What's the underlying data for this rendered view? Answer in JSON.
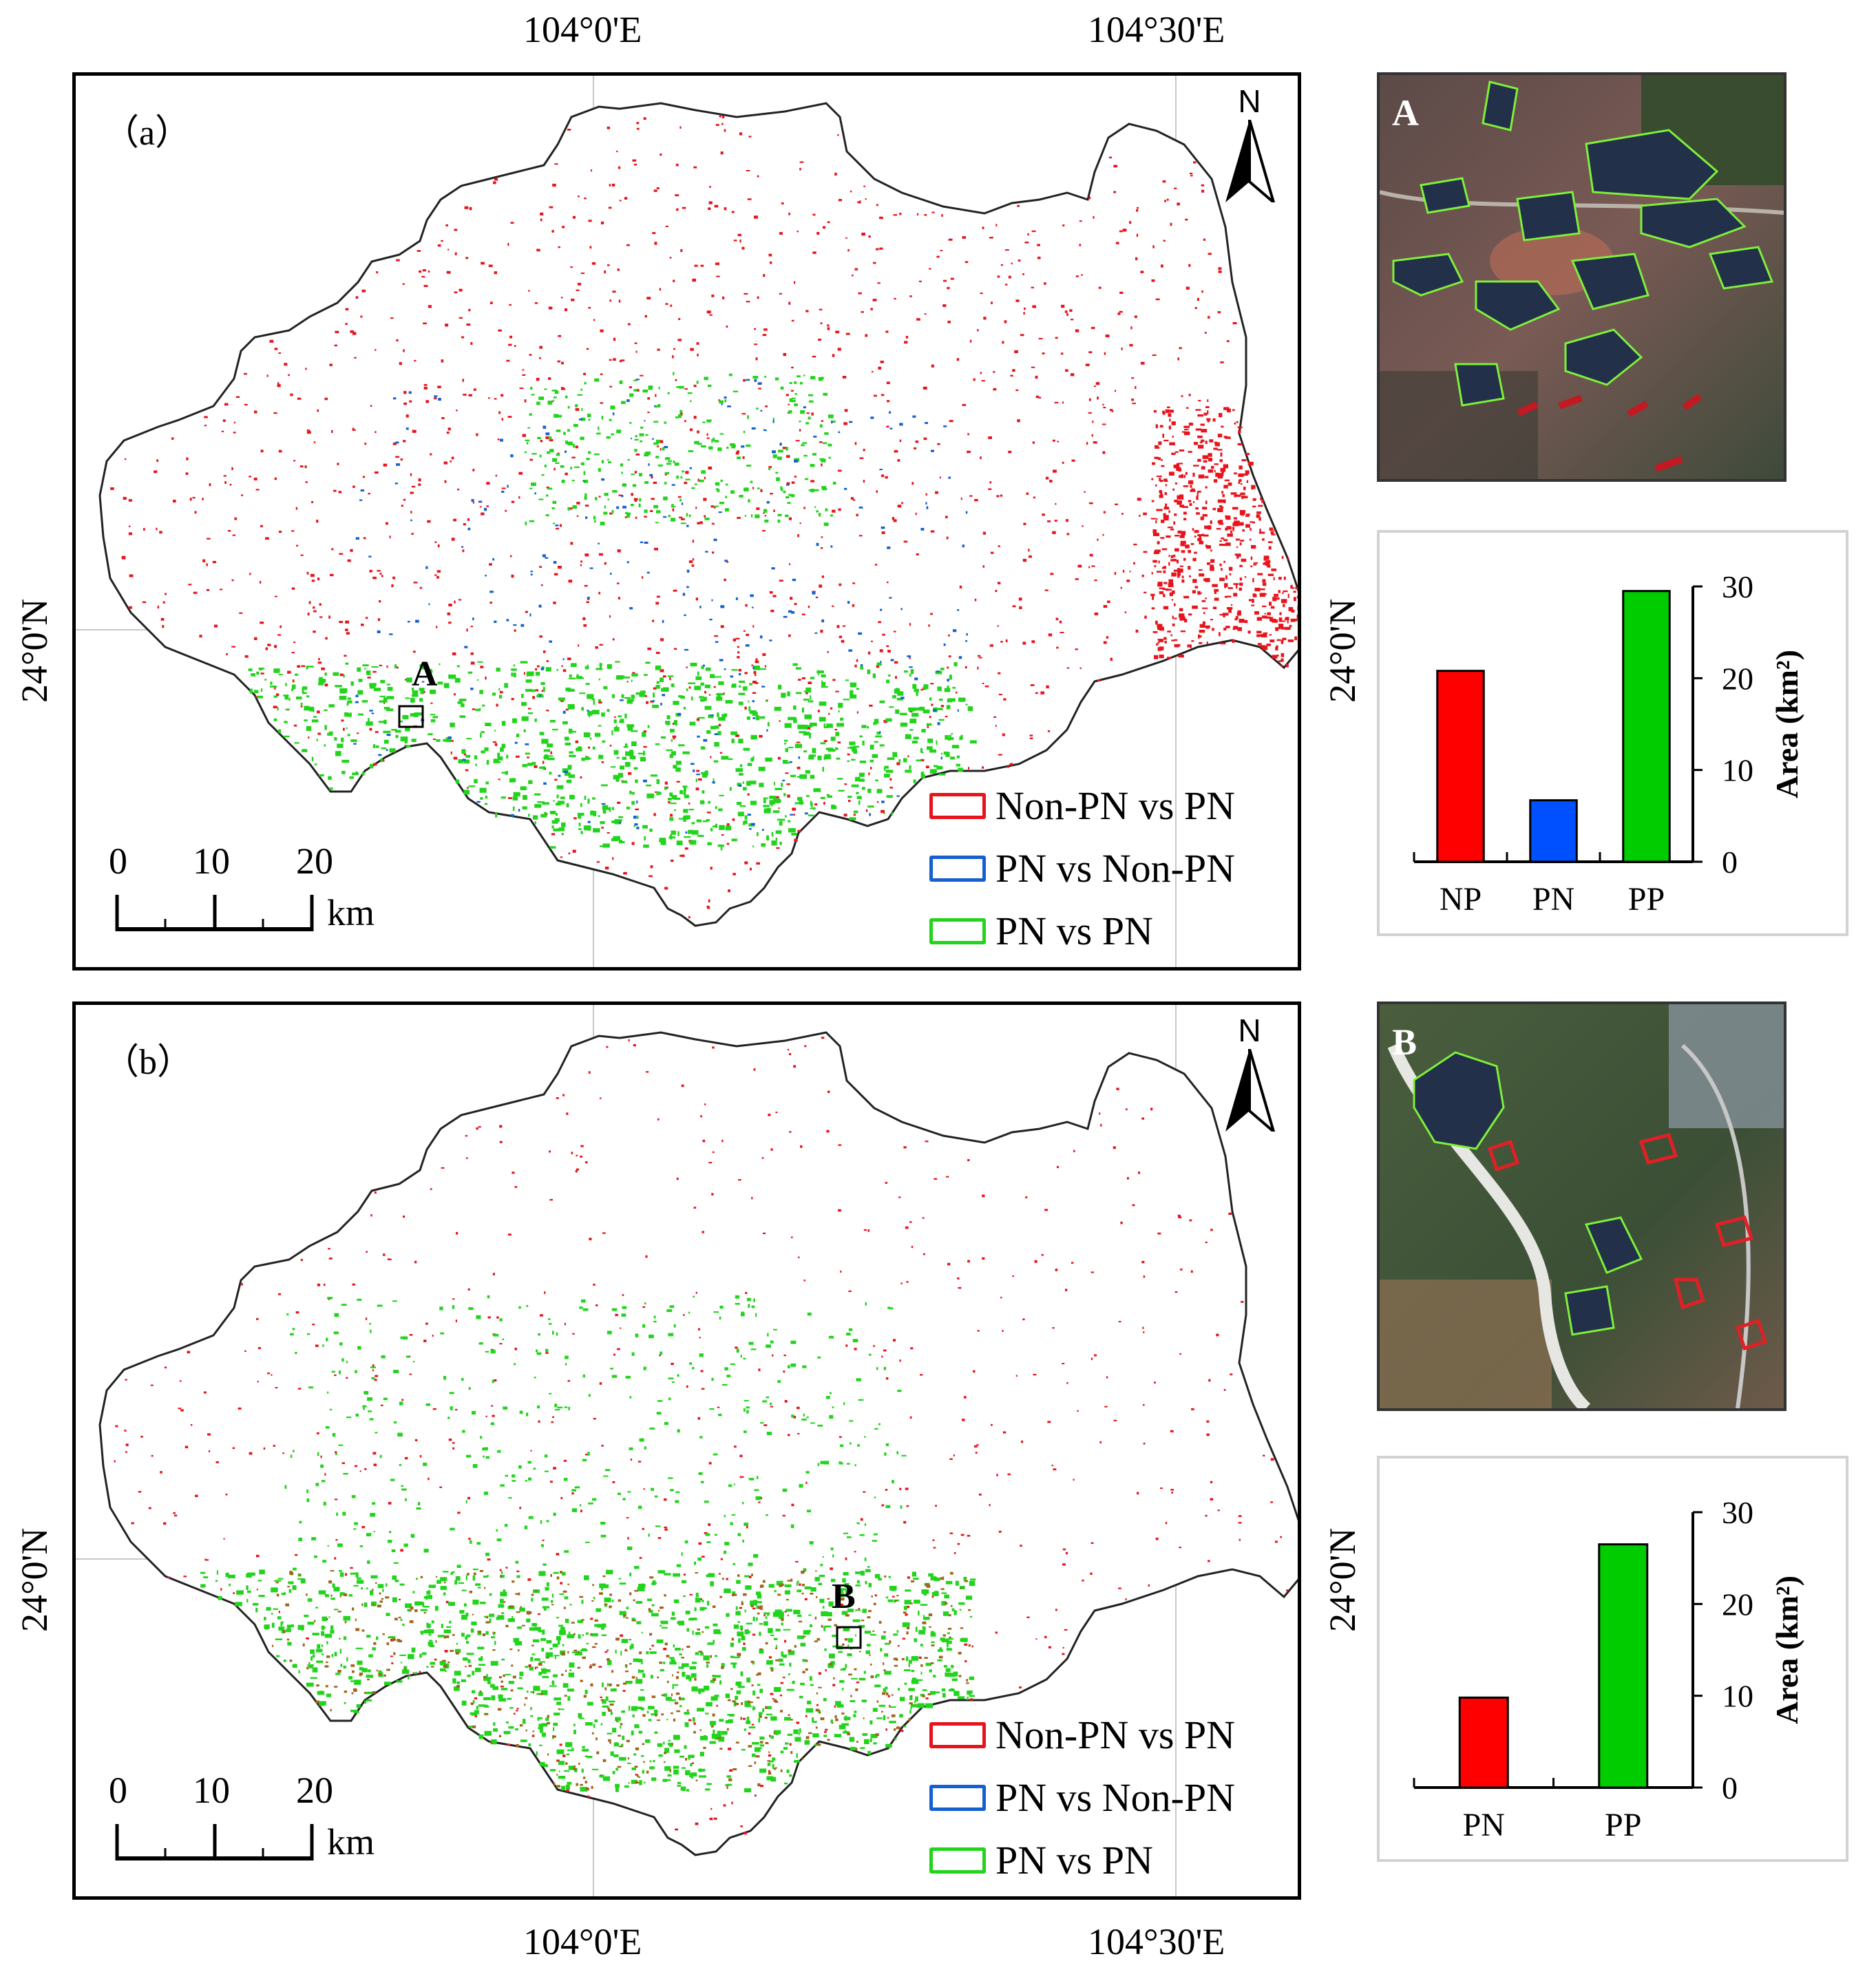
{
  "axes": {
    "top_lon_1": "104°0'E",
    "top_lon_2": "104°30'E",
    "bottom_lon_1": "104°0'E",
    "bottom_lon_2": "104°30'E",
    "left_lat_a": "24°0'N",
    "right_lat_a": "24°0'N",
    "left_lat_b": "24°0'N",
    "right_lat_b": "24°0'N"
  },
  "panel_a": {
    "label": "（a）",
    "marker": "A",
    "north": "N",
    "legend": [
      {
        "label": "Non-PN vs PN",
        "color": "#e8141c"
      },
      {
        "label": "PN vs Non-PN",
        "color": "#1560d0"
      },
      {
        "label": "PN vs PN",
        "color": "#22d41c"
      }
    ],
    "scale": {
      "t0": "0",
      "t1": "10",
      "t2": "20",
      "unit": "km"
    }
  },
  "panel_b": {
    "label": "（b）",
    "marker": "B",
    "north": "N",
    "legend": [
      {
        "label": "Non-PN vs PN",
        "color": "#e8141c"
      },
      {
        "label": "PN vs Non-PN",
        "color": "#1560d0"
      },
      {
        "label": "PN vs PN",
        "color": "#22d41c"
      }
    ],
    "scale": {
      "t0": "0",
      "t1": "10",
      "t2": "20",
      "unit": "km"
    }
  },
  "inset_a": {
    "label": "A"
  },
  "inset_b": {
    "label": "B"
  },
  "chart_data": [
    {
      "type": "bar",
      "categories": [
        "NP",
        "PN",
        "PP"
      ],
      "values": [
        20.8,
        6.7,
        29.5
      ],
      "colors": [
        "#ff0000",
        "#0050ff",
        "#00cc00"
      ],
      "ylabel": "Area (km²)",
      "ylim": [
        0,
        30
      ],
      "yticks": [
        "0",
        "10",
        "20",
        "30"
      ],
      "axis_side": "right"
    },
    {
      "type": "bar",
      "categories": [
        "PN",
        "PP"
      ],
      "values": [
        9.8,
        26.5
      ],
      "colors": [
        "#ff0000",
        "#00cc00"
      ],
      "ylabel": "Area (km²)",
      "ylim": [
        0,
        30
      ],
      "yticks": [
        "0",
        "10",
        "20",
        "30"
      ],
      "axis_side": "right"
    }
  ]
}
